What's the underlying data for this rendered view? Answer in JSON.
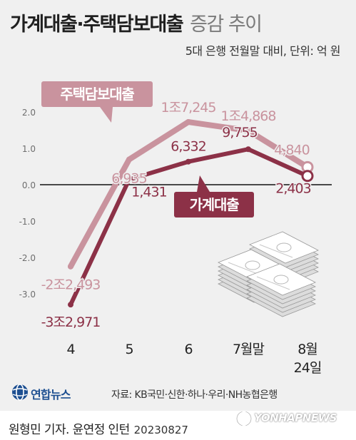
{
  "title": {
    "main": "가계대출·주택담보대출",
    "sub": "증감 추이"
  },
  "unit_note": "5대 은행 전월말 대비, 단위: 억 원",
  "source": "자료: KB국민·신한·하나·우리·NH농협은행",
  "logo_text": "연합뉴스",
  "watermark_text": "YONHAPNEWS",
  "byline": {
    "reporter": "원형민 기자. 윤연정 인턴",
    "date": "20230827"
  },
  "colors": {
    "housing": "#c9939e",
    "household": "#8c3147",
    "background": "#f0f0f0"
  },
  "icons": [
    "money-stack-icon",
    "yonhap-globe-icon"
  ],
  "chart_data": {
    "type": "line",
    "categories": [
      "4",
      "5",
      "6",
      "7월말",
      "8월\n24일"
    ],
    "y_ticks": [
      "2.0",
      "1.0",
      "0.0",
      "-1.0",
      "-2.0",
      "-3.0"
    ],
    "ylim": [
      -3.0,
      2.0
    ],
    "grid": false,
    "series": [
      {
        "name": "주택담보대출",
        "values": [
          -2.2493,
          0.6935,
          1.7245,
          1.4868,
          0.484
        ],
        "labels": [
          "-2조2,493",
          "6,935",
          "1조7,245",
          "1조4,868",
          "4,840"
        ]
      },
      {
        "name": "가계대출",
        "values": [
          -3.2971,
          0.1431,
          0.6332,
          0.9755,
          0.2403
        ],
        "labels": [
          "-3조2,971",
          "1,431",
          "6,332",
          "9,755",
          "2,403"
        ]
      }
    ]
  }
}
